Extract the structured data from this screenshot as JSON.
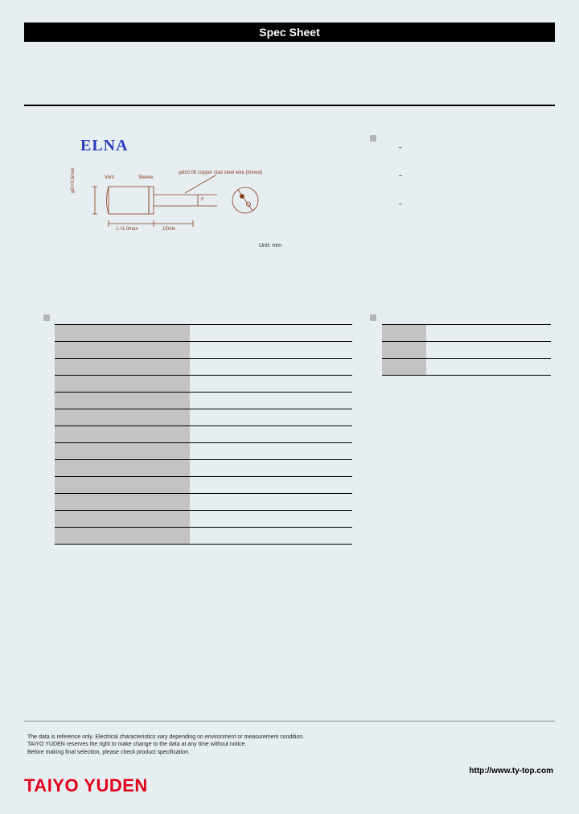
{
  "title_bar": "Spec Sheet",
  "elna_logo": "ELNA",
  "diagram": {
    "label_vent": "Vent",
    "label_sleeve": "Sleeve",
    "label_lead": "φd±0.05 copper clad steel wire (tinned)",
    "dim_D": "φD+0.5max",
    "dim_L": "L+1.0max",
    "dim_gap": "15min",
    "dim_pitch": "F",
    "unit": "Unit: mm"
  },
  "features": {
    "item1": "–",
    "item2": "–",
    "item3": "–"
  },
  "spec_table": {
    "rows": [
      {
        "label": "",
        "value": ""
      },
      {
        "label": "",
        "value": ""
      },
      {
        "label": "",
        "value": ""
      },
      {
        "label": "",
        "value": ""
      },
      {
        "label": "",
        "value": ""
      },
      {
        "label": "",
        "value": ""
      },
      {
        "label": "",
        "value": ""
      },
      {
        "label": "",
        "value": ""
      },
      {
        "label": "",
        "value": ""
      },
      {
        "label": "",
        "value": ""
      },
      {
        "label": "",
        "value": ""
      },
      {
        "label": "",
        "value": ""
      },
      {
        "label": "",
        "value": ""
      }
    ]
  },
  "dim_table": {
    "rows": [
      {
        "label": "",
        "value": ""
      },
      {
        "label": "",
        "value": ""
      },
      {
        "label": "",
        "value": ""
      }
    ]
  },
  "disclaimer": {
    "line1": "The data is reference only. Electrical characteristics vary depending on environment or measurement condition.",
    "line2": "TAIYO YUDEN reserves the right to make change to the data at any time without notice.",
    "line3": "Before making final selection, please check product specification."
  },
  "footer_logo": "TAIYO YUDEN",
  "footer_url": "http://www.ty-top.com",
  "colors": {
    "page_bg": "#e6eef1",
    "title_bg": "#000000",
    "title_fg": "#ffffff",
    "elna": "#2a3fbf",
    "table_header_bg": "#c3c3c3",
    "box_marker": "#b5b5b5",
    "ty_red": "#e2001a",
    "diagram_stroke": "#8a3a1a"
  }
}
